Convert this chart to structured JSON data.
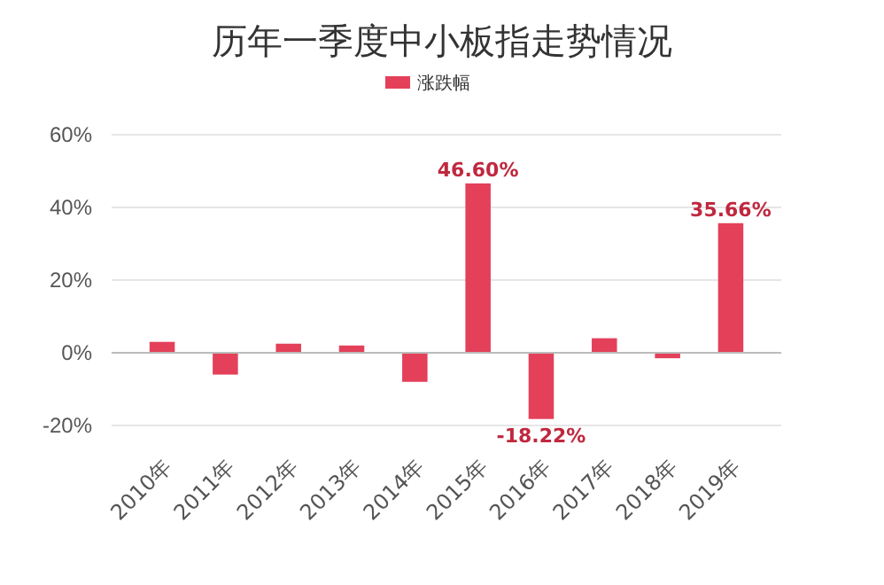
{
  "chart_data": {
    "type": "bar",
    "title": "历年一季度中小板指走势情况",
    "categories": [
      "2010年",
      "2011年",
      "2012年",
      "2013年",
      "2014年",
      "2015年",
      "2016年",
      "2017年",
      "2018年",
      "2019年"
    ],
    "series": [
      {
        "name": "涨跌幅",
        "color": "#e4405a",
        "values": [
          3,
          -6,
          2.5,
          2,
          -8,
          46.6,
          -18.22,
          4,
          -1.5,
          35.66
        ],
        "value_labels": [
          null,
          null,
          null,
          null,
          null,
          "46.60%",
          "-18.22%",
          null,
          null,
          "35.66%"
        ]
      }
    ],
    "ylim": [
      -20,
      60
    ],
    "yticks": [
      {
        "value": -20,
        "label": "-20%"
      },
      {
        "value": 0,
        "label": "0%"
      },
      {
        "value": 20,
        "label": "20%"
      },
      {
        "value": 40,
        "label": "40%"
      },
      {
        "value": 60,
        "label": "60%"
      }
    ],
    "grid": "y",
    "legend": "top"
  }
}
